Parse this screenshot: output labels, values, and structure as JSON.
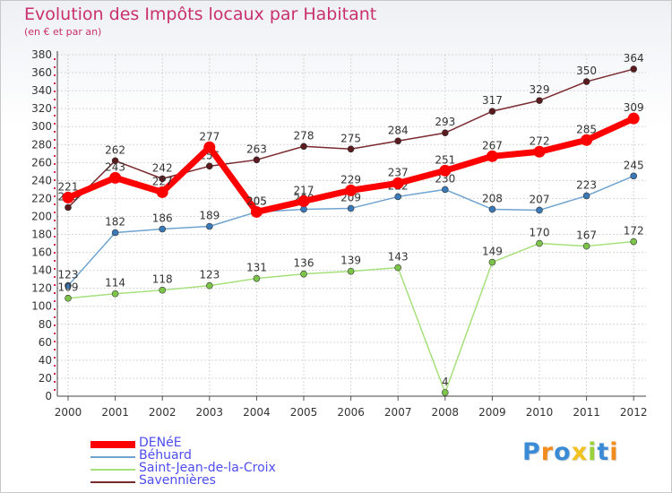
{
  "chart_data": {
    "type": "line",
    "title": "Evolution des Impôts locaux par Habitant",
    "subtitle": "(en € et par an)",
    "categories": [
      "2000",
      "2001",
      "2002",
      "2003",
      "2004",
      "2005",
      "2006",
      "2007",
      "2008",
      "2009",
      "2010",
      "2011",
      "2012"
    ],
    "ylim": [
      0,
      380
    ],
    "yticks": [
      0,
      20,
      40,
      60,
      80,
      100,
      120,
      140,
      160,
      180,
      200,
      220,
      240,
      260,
      280,
      300,
      320,
      340,
      360,
      380
    ],
    "grid": true,
    "legend_position": "bottom-left",
    "series": [
      {
        "name": "Savennières",
        "color": "#7a2a2e",
        "marker": "#5a1a1e",
        "values": [
          210,
          262,
          242,
          256,
          263,
          278,
          275,
          284,
          293,
          317,
          329,
          350,
          364
        ]
      },
      {
        "name": "Béhuard",
        "color": "#6fa3d0",
        "marker": "#3a7ab8",
        "values": [
          123,
          182,
          186,
          189,
          205,
          208,
          209,
          222,
          230,
          208,
          207,
          223,
          245
        ]
      },
      {
        "name": "Saint-Jean-de-la-Croix",
        "color": "#a6e07a",
        "marker": "#7cc44a",
        "values": [
          109,
          114,
          118,
          123,
          131,
          136,
          139,
          143,
          4,
          149,
          170,
          167,
          172
        ]
      },
      {
        "name": "DENéE",
        "color": "#ff0000",
        "marker": "#ff0000",
        "values": [
          221,
          243,
          227,
          277,
          205,
          217,
          229,
          237,
          251,
          267,
          272,
          285,
          309
        ]
      }
    ],
    "legend": [
      "DENéE",
      "Béhuard",
      "Saint-Jean-de-la-Croix",
      "Savennières"
    ]
  },
  "logo": {
    "text": "Proxiti",
    "letters": [
      {
        "ch": "P",
        "color": "#3b8ad6"
      },
      {
        "ch": "r",
        "color": "#f28c1e"
      },
      {
        "ch": "o",
        "color": "#3b8ad6"
      },
      {
        "ch": "x",
        "color": "#f2c21e"
      },
      {
        "ch": "i",
        "color": "#9bd13a"
      },
      {
        "ch": "t",
        "color": "#3b8ad6"
      },
      {
        "ch": "i",
        "color": "#f28c1e"
      }
    ]
  }
}
